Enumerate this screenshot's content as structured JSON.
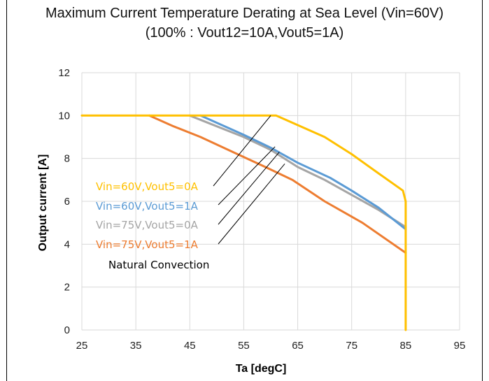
{
  "chart_data": {
    "type": "line",
    "title": "Maximum Current Temperature Derating at Sea Level (Vin=60V)",
    "subtitle": "(100% : Vout12=10A,Vout5=1A)",
    "xlabel": "Ta [degC]",
    "ylabel": "Output current [A]",
    "xlim": [
      25,
      95
    ],
    "ylim": [
      0,
      12
    ],
    "xticks": [
      25,
      35,
      45,
      55,
      65,
      75,
      85,
      95
    ],
    "yticks": [
      0,
      2,
      4,
      6,
      8,
      10,
      12
    ],
    "grid": true,
    "series": [
      {
        "name": "Vin=60V,Vout5=0A",
        "color": "#FFC000",
        "points": [
          [
            25,
            10
          ],
          [
            61,
            10
          ],
          [
            70,
            9
          ],
          [
            75,
            8.2
          ],
          [
            80,
            7.3
          ],
          [
            84.5,
            6.5
          ],
          [
            85,
            6
          ],
          [
            85,
            0
          ]
        ]
      },
      {
        "name": "Vin=60V,Vout5=1A",
        "color": "#5B9BD5",
        "points": [
          [
            47,
            10
          ],
          [
            55,
            9.1
          ],
          [
            60,
            8.5
          ],
          [
            65,
            7.8
          ],
          [
            71,
            7.1
          ],
          [
            75,
            6.5
          ],
          [
            80,
            5.7
          ],
          [
            85,
            4.7
          ]
        ]
      },
      {
        "name": "Vin=75V,Vout5=0A",
        "color": "#A5A5A5",
        "points": [
          [
            45,
            10
          ],
          [
            50,
            9.5
          ],
          [
            55,
            9
          ],
          [
            60,
            8.4
          ],
          [
            65,
            7.6
          ],
          [
            70,
            7
          ],
          [
            75,
            6.3
          ],
          [
            80,
            5.6
          ],
          [
            85,
            4.8
          ]
        ]
      },
      {
        "name": "Vin=75V,Vout5=1A",
        "color": "#ED7D31",
        "points": [
          [
            37.5,
            10
          ],
          [
            42,
            9.5
          ],
          [
            47,
            9
          ],
          [
            53,
            8.3
          ],
          [
            59,
            7.6
          ],
          [
            64,
            7
          ],
          [
            70,
            6
          ],
          [
            77,
            5
          ],
          [
            85,
            3.6
          ]
        ]
      }
    ],
    "annotation": "Natural Convection",
    "legend_placement": "inside-left, with leader lines pointing to the curves"
  }
}
